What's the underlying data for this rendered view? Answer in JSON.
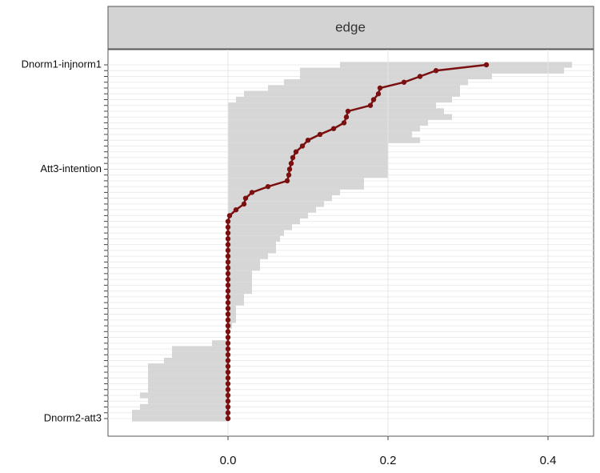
{
  "chart_data": {
    "type": "edge-ci",
    "facet_label": "edge",
    "categories": [
      "Dnorm1-injnorm1",
      null,
      null,
      null,
      null,
      null,
      null,
      null,
      null,
      null,
      null,
      null,
      null,
      null,
      null,
      null,
      null,
      null,
      "Att3-intention",
      null,
      null,
      null,
      null,
      null,
      null,
      null,
      null,
      null,
      null,
      null,
      null,
      null,
      null,
      null,
      null,
      null,
      null,
      null,
      null,
      null,
      null,
      null,
      null,
      null,
      null,
      null,
      null,
      null,
      null,
      null,
      null,
      null,
      null,
      null,
      null,
      null,
      null,
      null,
      null,
      null,
      null,
      "Dnorm2-att3"
    ],
    "values": [
      0.323,
      0.26,
      0.24,
      0.22,
      0.19,
      0.188,
      0.182,
      0.178,
      0.15,
      0.148,
      0.145,
      0.132,
      0.115,
      0.1,
      0.093,
      0.085,
      0.081,
      0.079,
      0.077,
      0.076,
      0.074,
      0.05,
      0.03,
      0.022,
      0.02,
      0.01,
      0.002,
      0,
      0,
      0,
      0,
      0,
      0,
      0,
      0,
      0,
      0,
      0,
      0,
      0,
      0,
      0,
      0,
      0,
      0,
      0,
      0,
      0,
      0,
      0,
      0,
      0,
      0,
      0,
      0,
      0,
      0,
      0,
      0,
      0,
      0,
      0
    ],
    "ci_lower": [
      0.14,
      0.09,
      0.09,
      0.07,
      0.05,
      0.02,
      0.01,
      0,
      0,
      0,
      0,
      0,
      0,
      0,
      0,
      0,
      0,
      0,
      0,
      0,
      0,
      0,
      0,
      0,
      0,
      0,
      0,
      0,
      0,
      0,
      0,
      0,
      0,
      0,
      0,
      0,
      0,
      0,
      0,
      0,
      0,
      0,
      0,
      0,
      0,
      0,
      0,
      0,
      -0.02,
      -0.07,
      -0.07,
      -0.08,
      -0.1,
      -0.1,
      -0.1,
      -0.1,
      -0.1,
      -0.11,
      -0.1,
      -0.11,
      -0.12,
      -0.12
    ],
    "ci_upper": [
      0.43,
      0.42,
      0.33,
      0.3,
      0.29,
      0.29,
      0.28,
      0.26,
      0.27,
      0.28,
      0.25,
      0.24,
      0.23,
      0.24,
      0.2,
      0.2,
      0.2,
      0.2,
      0.2,
      0.2,
      0.17,
      0.17,
      0.14,
      0.13,
      0.12,
      0.11,
      0.1,
      0.09,
      0.08,
      0.07,
      0.065,
      0.06,
      0.06,
      0.05,
      0.04,
      0.04,
      0.03,
      0.03,
      0.03,
      0.03,
      0.02,
      0.02,
      0.01,
      0.01,
      0.01,
      0.005,
      0,
      0,
      0,
      0,
      0,
      0,
      0,
      0,
      0,
      0,
      0,
      0,
      0,
      0,
      0,
      0
    ],
    "color": "#7a1010",
    "ci_color": "#d6d6d6",
    "xlim": [
      -0.15,
      0.457
    ],
    "xticks": [
      {
        "value": 0,
        "label": "0.0"
      },
      0.2,
      0.4
    ],
    "grid": true
  }
}
